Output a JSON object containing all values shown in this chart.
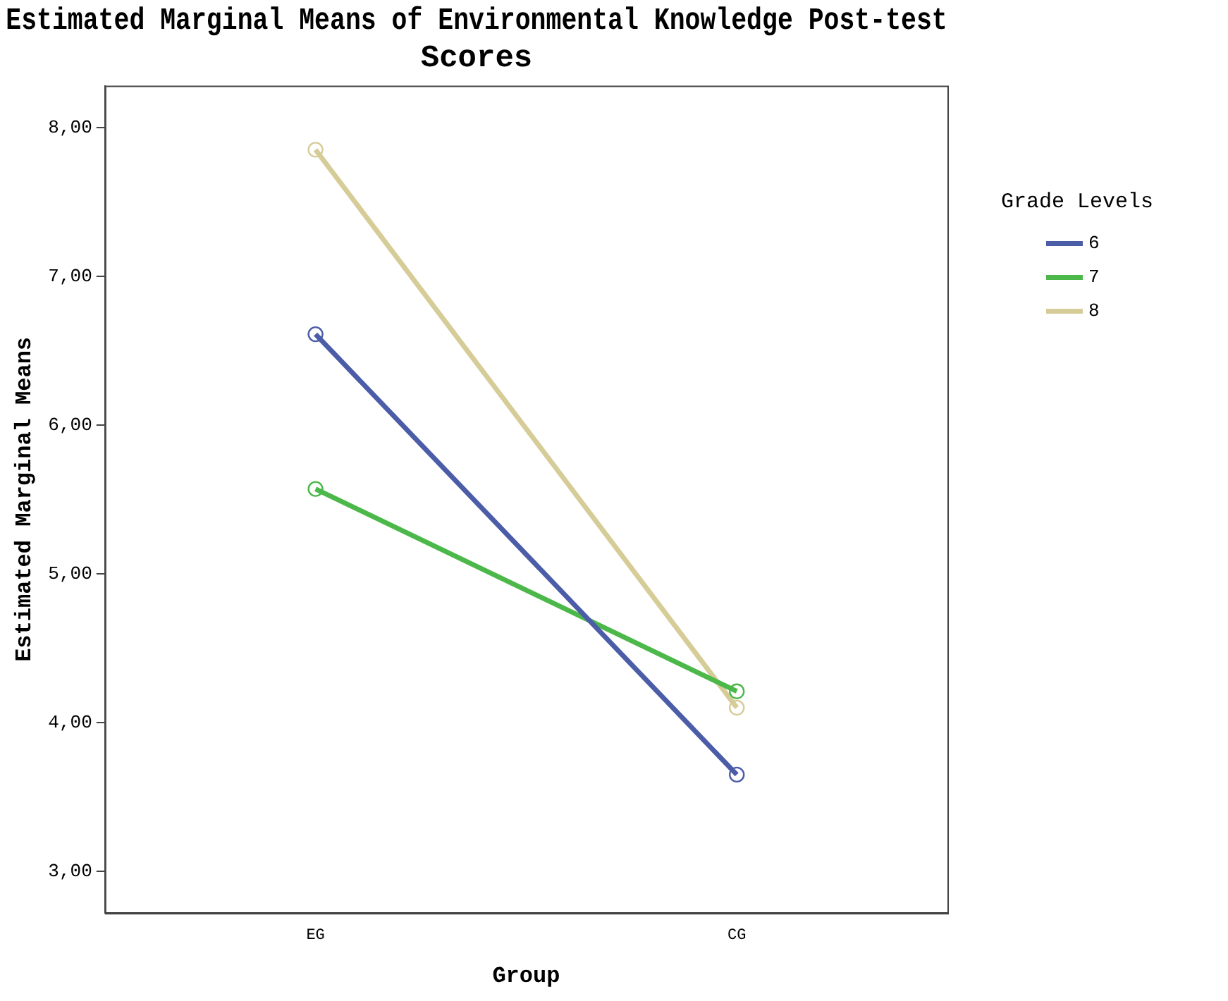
{
  "chart_data": {
    "type": "line",
    "title": "Estimated Marginal Means of Environmental Knowledge Post-test Scores",
    "xlabel": "Group",
    "ylabel": "Estimated Marginal Means",
    "legend_title": "Grade Levels",
    "categories": [
      "EG",
      "CG"
    ],
    "series": [
      {
        "name": "6",
        "color": "#4c5da8",
        "values": [
          6.61,
          3.65
        ]
      },
      {
        "name": "7",
        "color": "#4cb84a",
        "values": [
          5.57,
          4.21
        ]
      },
      {
        "name": "8",
        "color": "#d6cc98",
        "values": [
          7.85,
          4.1
        ]
      }
    ],
    "ylim": [
      2.72,
      8.28
    ],
    "yticks": [
      {
        "value": 3,
        "label": "3,00"
      },
      {
        "value": 4,
        "label": "4,00"
      },
      {
        "value": 5,
        "label": "5,00"
      },
      {
        "value": 6,
        "label": "6,00"
      },
      {
        "value": 7,
        "label": "7,00"
      },
      {
        "value": 8,
        "label": "8,00"
      }
    ],
    "grid": false,
    "legend": "right",
    "marker": "circle",
    "line_style": "solid"
  }
}
